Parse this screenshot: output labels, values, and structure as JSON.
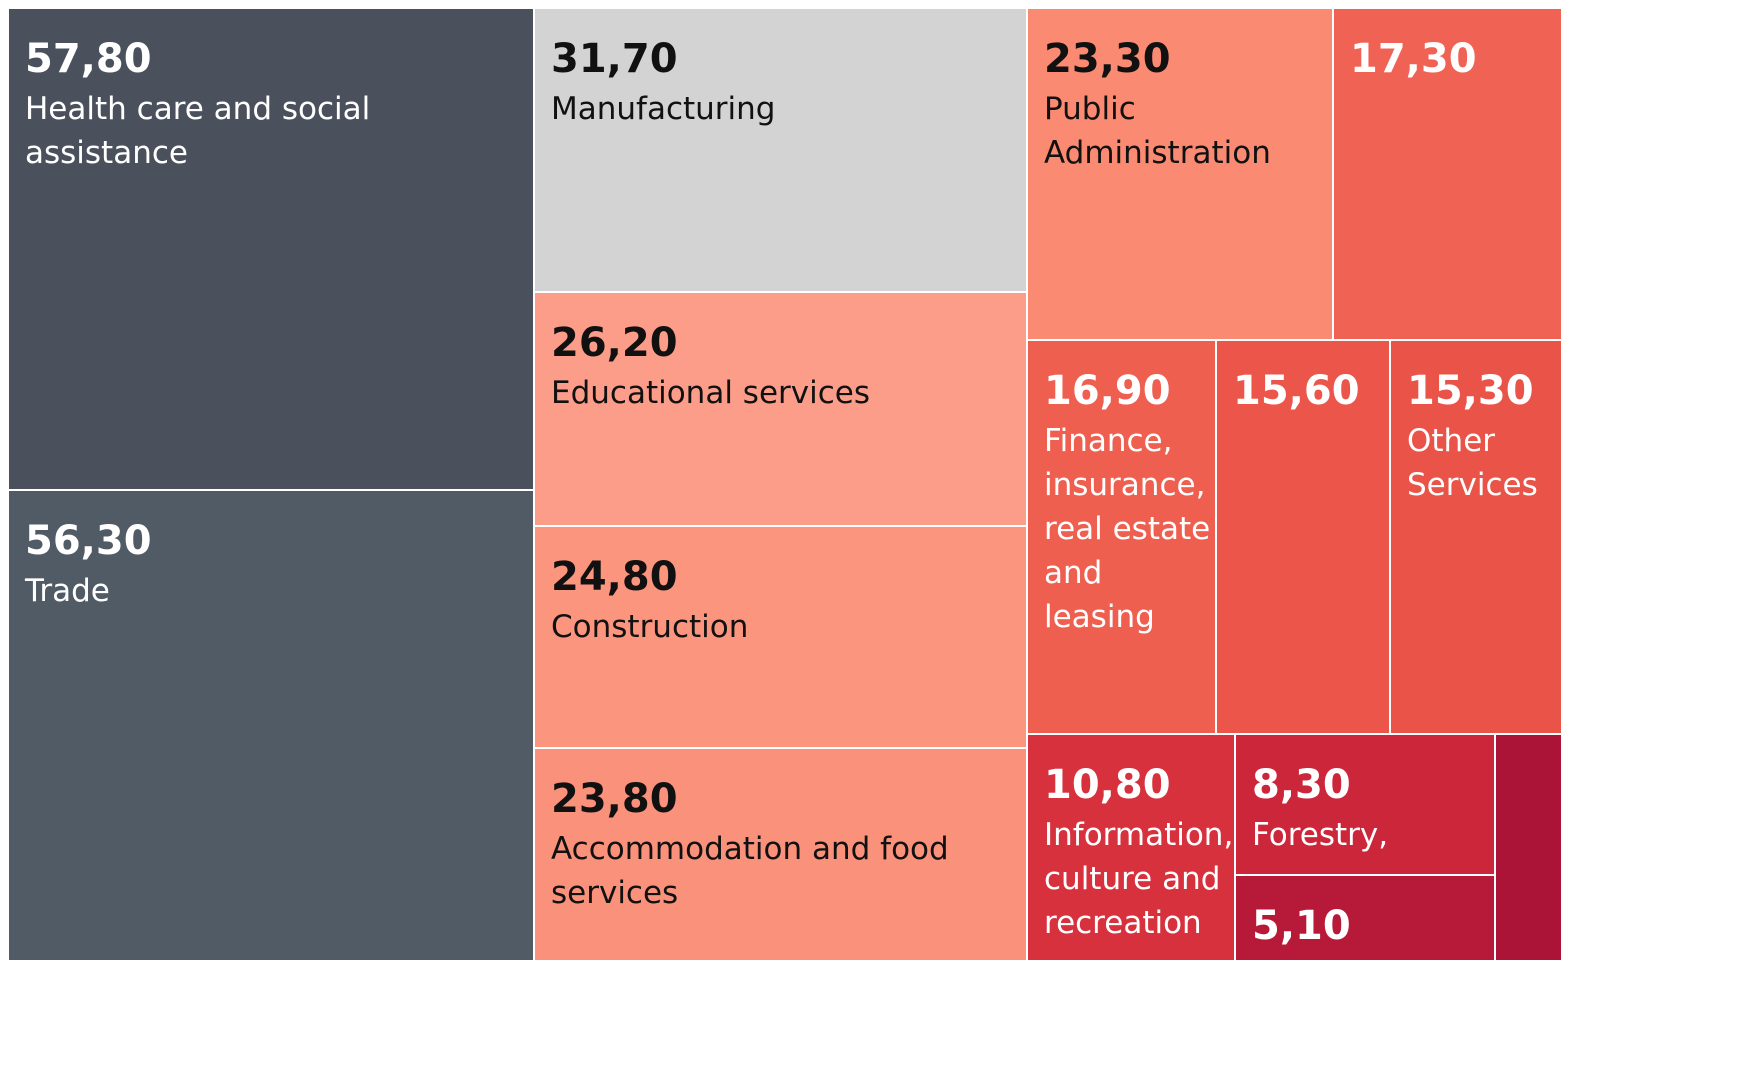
{
  "chart_data": {
    "type": "treemap",
    "items": [
      {
        "value": 57.8,
        "value_text": "57,80",
        "label": "Health care and social assistance",
        "color": "#4b515c",
        "text_color": "#ffffff"
      },
      {
        "value": 56.3,
        "value_text": "56,30",
        "label": "Trade",
        "color": "#515b66",
        "text_color": "#ffffff"
      },
      {
        "value": 31.7,
        "value_text": "31,70",
        "label": "Manufacturing",
        "color": "#d3d3d3",
        "text_color": "#111111"
      },
      {
        "value": 26.2,
        "value_text": "26,20",
        "label": "Educational services",
        "color": "#fc9d8a",
        "text_color": "#111111"
      },
      {
        "value": 24.8,
        "value_text": "24,80",
        "label": "Construction",
        "color": "#fb957e",
        "text_color": "#111111"
      },
      {
        "value": 23.8,
        "value_text": "23,80",
        "label": "Accommodation and food services",
        "color": "#fa917a",
        "text_color": "#111111"
      },
      {
        "value": 23.3,
        "value_text": "23,30",
        "label": "Public Administration",
        "color": "#fa8b72",
        "text_color": "#111111"
      },
      {
        "value": 17.3,
        "value_text": "17,30",
        "label": "",
        "color": "#f06253",
        "text_color": "#ffffff"
      },
      {
        "value": 16.9,
        "value_text": "16,90",
        "label": "Finance, insurance, real estate and leasing",
        "color": "#ef5f50",
        "text_color": "#ffffff"
      },
      {
        "value": 15.6,
        "value_text": "15,60",
        "label": "",
        "color": "#ec564a",
        "text_color": "#ffffff"
      },
      {
        "value": 15.3,
        "value_text": "15,30",
        "label": "Other Services",
        "color": "#ea5347",
        "text_color": "#ffffff"
      },
      {
        "value": 10.8,
        "value_text": "10,80",
        "label": "Information, culture and recreation",
        "color": "#d7313e",
        "text_color": "#ffffff"
      },
      {
        "value": 8.3,
        "value_text": "8,30",
        "label": "Forestry,",
        "color": "#cc263b",
        "text_color": "#ffffff"
      },
      {
        "value": 5.1,
        "value_text": "5,10",
        "label": "",
        "color": "#b71a38",
        "text_color": "#ffffff"
      },
      {
        "value": null,
        "value_text": "",
        "label": "",
        "color": "#ac1437",
        "text_color": "#ffffff"
      }
    ]
  }
}
